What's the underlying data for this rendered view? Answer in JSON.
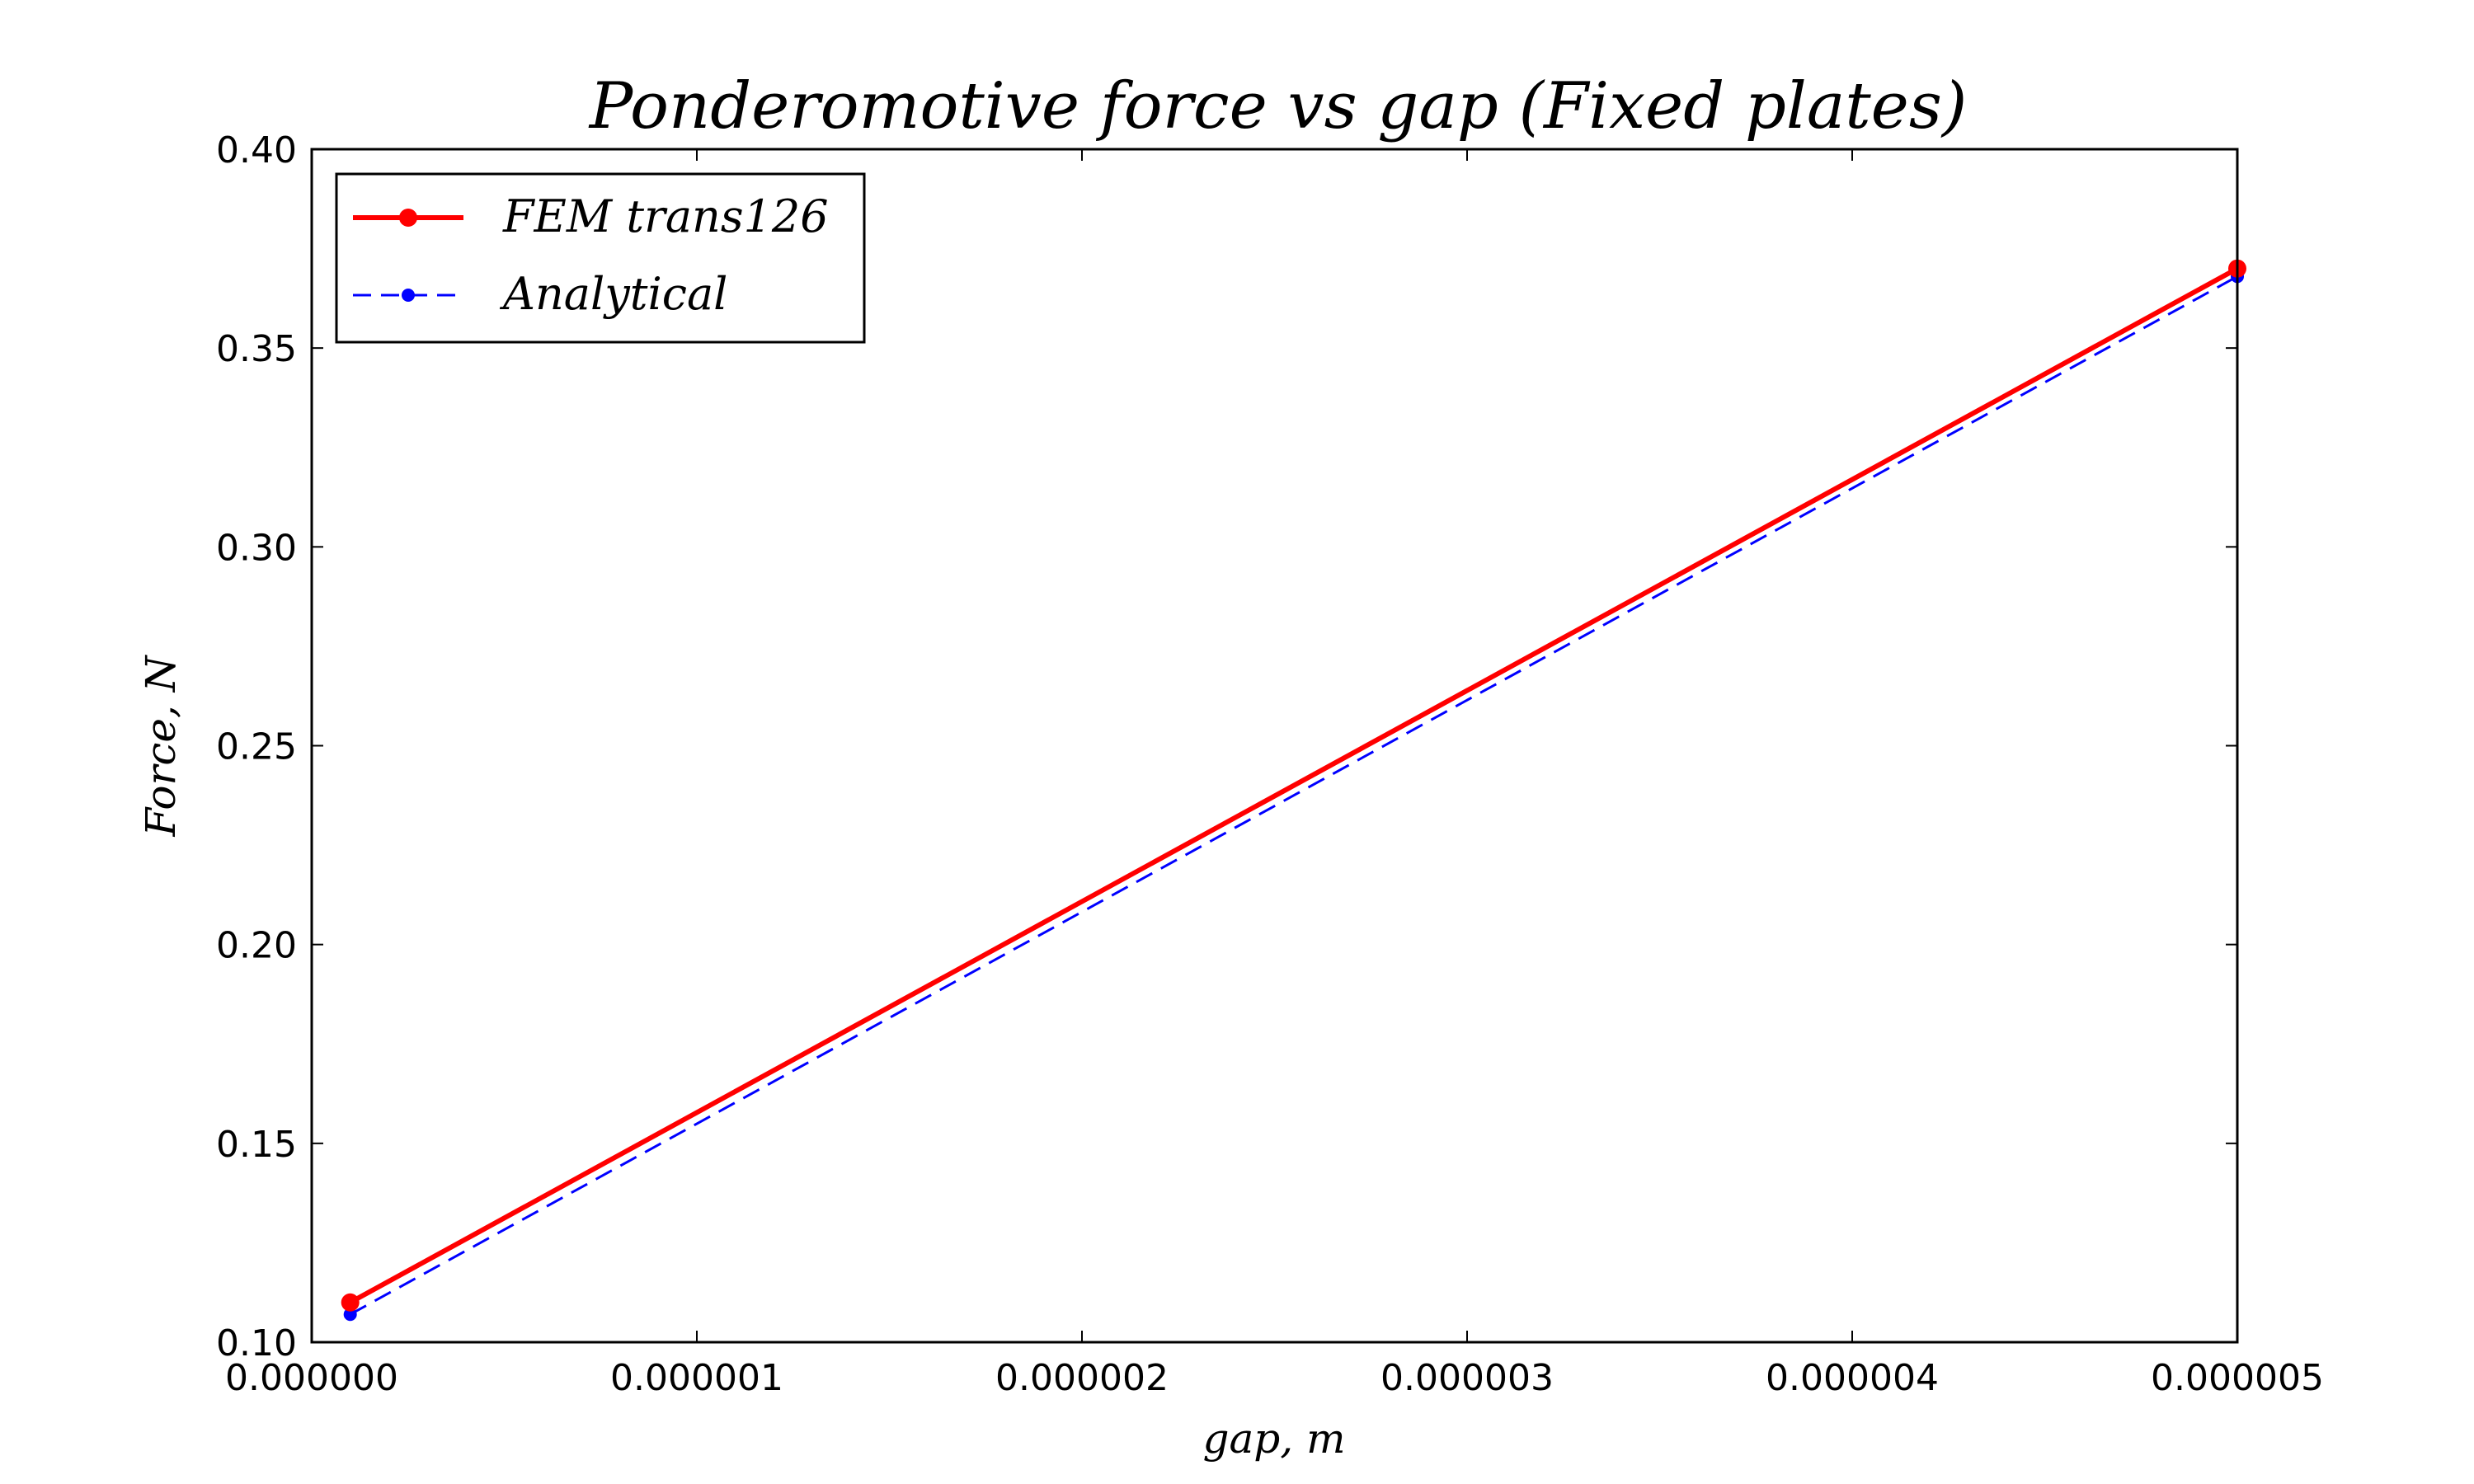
{
  "chart_data": {
    "type": "line",
    "title": "Ponderomotive force vs gap (Fixed plates)",
    "xlabel": "gap, m",
    "ylabel": "Force, N",
    "xlim": [
      0.0,
      5e-06
    ],
    "ylim": [
      0.1,
      0.4
    ],
    "x_ticks": [
      0.0,
      1e-06,
      2e-06,
      3e-06,
      4e-06,
      5e-06
    ],
    "x_tick_labels": [
      "0.000000",
      "0.000001",
      "0.000002",
      "0.000003",
      "0.000004",
      "0.000005"
    ],
    "y_ticks": [
      0.1,
      0.15,
      0.2,
      0.25,
      0.3,
      0.35,
      0.4
    ],
    "y_tick_labels": [
      "0.10",
      "0.15",
      "0.20",
      "0.25",
      "0.30",
      "0.35",
      "0.40"
    ],
    "grid": false,
    "legend_position": "upper-left",
    "series": [
      {
        "name": "FEM trans126",
        "color": "#ff0000",
        "line_style": "solid",
        "marker": "circle",
        "x": [
          1e-07,
          5e-06
        ],
        "y": [
          0.11,
          0.37
        ]
      },
      {
        "name": "Analytical",
        "color": "#0000ff",
        "line_style": "dashed",
        "marker": "circle",
        "x": [
          1e-07,
          5e-06
        ],
        "y": [
          0.107,
          0.368
        ]
      }
    ]
  }
}
